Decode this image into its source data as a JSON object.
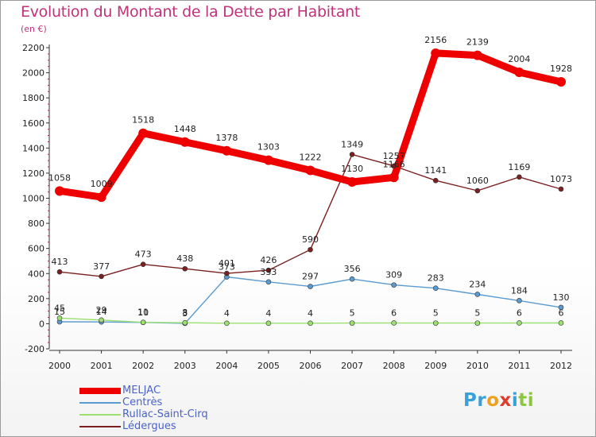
{
  "title": "Evolution du Montant de la Dette par Habitant",
  "subtitle": "(en €)",
  "logo": {
    "text": "Proxiti",
    "letters": [
      {
        "ch": "P",
        "color": "#3aa0d8"
      },
      {
        "ch": "r",
        "color": "#3aa0d8"
      },
      {
        "ch": "o",
        "color": "#f0a020"
      },
      {
        "ch": "x",
        "color": "#e03a2a"
      },
      {
        "ch": "i",
        "color": "#3aa0d8"
      },
      {
        "ch": "t",
        "color": "#8cc63e"
      },
      {
        "ch": "i",
        "color": "#8cc63e"
      }
    ]
  },
  "chart_data": {
    "type": "line",
    "title": "Evolution du Montant de la Dette par Habitant",
    "subtitle": "(en €)",
    "xlabel": "",
    "ylabel": "",
    "ylim": [
      -200,
      2200
    ],
    "yticks": [
      -200,
      0,
      200,
      400,
      600,
      800,
      1000,
      1200,
      1400,
      1600,
      1800,
      2000,
      2200
    ],
    "grid": false,
    "legend_position": "bottom-left",
    "x": [
      "2000",
      "2001",
      "2002",
      "2003",
      "2004",
      "2005",
      "2006",
      "2007",
      "2008",
      "2009",
      "2010",
      "2011",
      "2012"
    ],
    "series": [
      {
        "name": "MELJAC",
        "color": "#ee0000",
        "emphasis": true,
        "values": [
          1058,
          1009,
          1518,
          1448,
          1378,
          1303,
          1222,
          1130,
          1166,
          2156,
          2139,
          2004,
          1928
        ]
      },
      {
        "name": "Centrès",
        "color": "#5b9bd0",
        "emphasis": false,
        "values": [
          15,
          14,
          10,
          3,
          373,
          333,
          297,
          356,
          309,
          283,
          234,
          184,
          130
        ]
      },
      {
        "name": "Rullac-Saint-Cirq",
        "color": "#9be070",
        "emphasis": false,
        "values": [
          45,
          29,
          11,
          8,
          4,
          4,
          4,
          5,
          6,
          5,
          5,
          6,
          6
        ]
      },
      {
        "name": "Lédergues",
        "color": "#7a2020",
        "emphasis": false,
        "values": [
          413,
          377,
          473,
          438,
          401,
          426,
          590,
          1349,
          1257,
          1141,
          1060,
          1169,
          1073
        ]
      }
    ]
  }
}
